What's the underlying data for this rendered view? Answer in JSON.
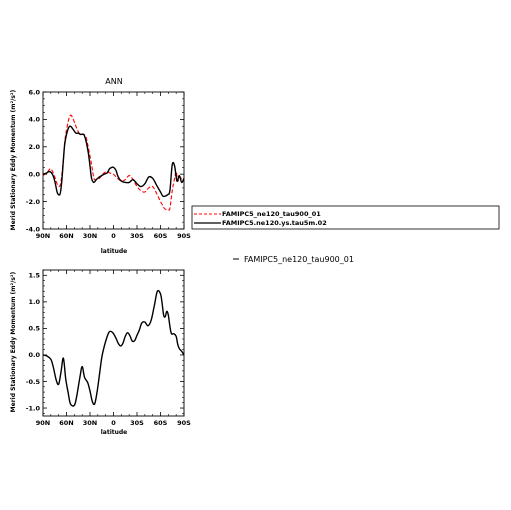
{
  "chart_data": [
    {
      "type": "line",
      "title": "ANN",
      "xlabel": "latitude",
      "ylabel": "Merid Stationary Eddy Momentum (m²/s²)",
      "x_ticks": [
        "90N",
        "60N",
        "30N",
        "0",
        "30S",
        "60S",
        "90S"
      ],
      "y_ticks": [
        "-4.0",
        "-2.0",
        "0.0",
        "2.0",
        "4.0",
        "6.0"
      ],
      "xlim": [
        90,
        -90
      ],
      "ylim": [
        -4,
        6
      ],
      "legend": {
        "placement": "right"
      },
      "series": [
        {
          "name": "FAMIPC5_ne120_tau900_01",
          "color": "#ff0000",
          "dash": "dashed",
          "x": [
            90,
            85,
            80,
            75,
            72,
            68,
            65,
            62,
            58,
            55,
            52,
            48,
            45,
            42,
            38,
            35,
            32,
            28,
            25,
            22,
            18,
            15,
            12,
            8,
            5,
            0,
            -5,
            -10,
            -15,
            -20,
            -25,
            -30,
            -35,
            -40,
            -45,
            -50,
            -55,
            -60,
            -62,
            -65,
            -68,
            -70,
            -72,
            -75,
            -78,
            -80,
            -82,
            -85,
            -88,
            -90
          ],
          "y": [
            -0.1,
            0.1,
            0.4,
            -0.2,
            -0.7,
            -0.8,
            0.5,
            2.5,
            3.8,
            4.3,
            4.1,
            3.5,
            3.1,
            2.9,
            2.9,
            2.7,
            1.9,
            0.7,
            -0.3,
            -0.4,
            -0.3,
            -0.1,
            0.1,
            0.2,
            0.1,
            0.0,
            -0.3,
            -0.5,
            -0.4,
            -0.1,
            -0.4,
            -0.9,
            -1.2,
            -1.3,
            -1.0,
            -0.9,
            -1.4,
            -2.0,
            -2.2,
            -2.5,
            -2.6,
            -2.6,
            -2.5,
            -1.2,
            -0.3,
            0.2,
            -0.5,
            -0.2,
            -0.5,
            -0.3
          ]
        },
        {
          "name": "FAMIPC5.ne120.ys.tau5m.02",
          "color": "#000000",
          "dash": "solid",
          "x": [
            90,
            85,
            82,
            78,
            75,
            72,
            70,
            68,
            66,
            64,
            62,
            58,
            55,
            52,
            48,
            45,
            42,
            38,
            35,
            32,
            30,
            28,
            25,
            22,
            18,
            15,
            12,
            8,
            5,
            2,
            0,
            -3,
            -6,
            -10,
            -15,
            -20,
            -25,
            -30,
            -35,
            -40,
            -45,
            -50,
            -55,
            -60,
            -63,
            -66,
            -69,
            -72,
            -75,
            -78,
            -81,
            -84,
            -87,
            -90
          ],
          "y": [
            0.0,
            0.1,
            0.2,
            0.0,
            -0.5,
            -1.3,
            -1.5,
            -1.4,
            -0.5,
            1.0,
            2.3,
            3.3,
            3.5,
            3.3,
            3.0,
            3.0,
            2.9,
            2.9,
            2.4,
            1.5,
            0.6,
            -0.3,
            -0.6,
            -0.4,
            -0.2,
            -0.1,
            0.0,
            0.1,
            0.4,
            0.5,
            0.5,
            0.3,
            -0.2,
            -0.5,
            -0.6,
            -0.6,
            -0.4,
            -0.7,
            -0.9,
            -0.7,
            -0.2,
            -0.3,
            -0.8,
            -1.3,
            -1.6,
            -1.6,
            -1.5,
            -1.2,
            0.7,
            0.6,
            -0.5,
            -0.1,
            -0.6,
            -0.3
          ]
        }
      ]
    },
    {
      "type": "line",
      "title": "",
      "xlabel": "latitude",
      "ylabel": "Merid Stationary Eddy Momentum (m²/s²)",
      "x_ticks": [
        "90N",
        "60N",
        "30N",
        "0",
        "30S",
        "60S",
        "90S"
      ],
      "y_ticks": [
        "-1.0",
        "-0.5",
        "0.0",
        "0.5",
        "1.0",
        "1.5"
      ],
      "xlim": [
        90,
        -90
      ],
      "ylim": [
        -1.15,
        1.6
      ],
      "annotation": "FAMIPC5_ne120_tau900_01",
      "series": [
        {
          "color": "#000000",
          "dash": "solid",
          "x": [
            90,
            85,
            80,
            77,
            73,
            70,
            67,
            64,
            61,
            58,
            55,
            50,
            47,
            43,
            40,
            37,
            33,
            30,
            27,
            24,
            21,
            18,
            15,
            12,
            8,
            5,
            1,
            -3,
            -6,
            -9,
            -12,
            -15,
            -18,
            -21,
            -24,
            -27,
            -30,
            -33,
            -36,
            -40,
            -44,
            -48,
            -52,
            -56,
            -60,
            -62,
            -64,
            -66,
            -68,
            -70,
            -72,
            -74,
            -77,
            -80,
            -82,
            -84,
            -87,
            -90
          ],
          "y": [
            0.0,
            -0.02,
            -0.08,
            -0.22,
            -0.48,
            -0.55,
            -0.32,
            -0.06,
            -0.45,
            -0.7,
            -0.92,
            -0.95,
            -0.78,
            -0.43,
            -0.22,
            -0.42,
            -0.52,
            -0.68,
            -0.88,
            -0.92,
            -0.7,
            -0.38,
            -0.05,
            0.15,
            0.35,
            0.44,
            0.42,
            0.32,
            0.22,
            0.17,
            0.22,
            0.35,
            0.42,
            0.36,
            0.26,
            0.27,
            0.37,
            0.47,
            0.6,
            0.62,
            0.55,
            0.65,
            0.92,
            1.2,
            1.15,
            0.98,
            0.75,
            0.72,
            0.82,
            0.75,
            0.54,
            0.4,
            0.4,
            0.35,
            0.2,
            0.12,
            0.07,
            0.0
          ]
        }
      ]
    }
  ]
}
